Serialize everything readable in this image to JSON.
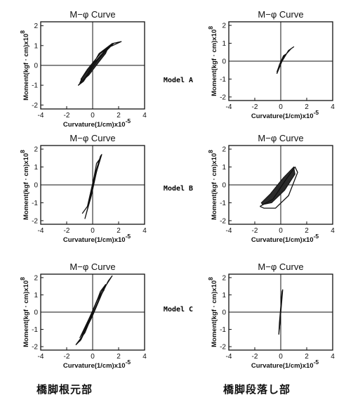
{
  "chart_data": [
    {
      "type": "line",
      "panel": "model-a-base",
      "title": "M−φ Curve",
      "xlabel": "Curvature(1/cm)x10",
      "xexp": "-5",
      "ylabel": "Moment(kgf · cm)x10",
      "yexp": "8",
      "xlim": [
        -4,
        4
      ],
      "ylim": [
        -2.2,
        2.2
      ],
      "xticks": [
        "-4",
        "-2",
        "0",
        "2",
        "4"
      ],
      "yticks": [
        "-2",
        "-1",
        "0",
        "1",
        "2"
      ],
      "series": [
        {
          "x": [
            -0.7,
            -0.2,
            0.5,
            1.5,
            2.2,
            1.2,
            0.6,
            -0.2,
            -0.7,
            -1.1,
            -0.4,
            0.4,
            1.3,
            1.6,
            0.6,
            -0.4,
            -0.9,
            -0.7
          ],
          "y": [
            -0.8,
            -0.2,
            0.6,
            1.1,
            1.2,
            0.9,
            0.5,
            -0.3,
            -0.8,
            -1.0,
            -0.5,
            0.3,
            0.9,
            1.1,
            0.6,
            -0.2,
            -0.7,
            -0.8
          ]
        }
      ],
      "filled": {
        "x": [
          -1.0,
          -0.3,
          0.4,
          1.0,
          1.2,
          0.6,
          -0.2,
          -0.8
        ],
        "y": [
          -0.9,
          -0.5,
          0.1,
          0.6,
          0.9,
          0.5,
          -0.1,
          -0.6
        ]
      }
    },
    {
      "type": "line",
      "panel": "model-a-step",
      "title": "M−φ Curve",
      "xlabel": "Curvature(1/cm)x10",
      "xexp": "-5",
      "ylabel": "Moment(kgf · cm)x10",
      "yexp": "8",
      "xlim": [
        -4,
        4
      ],
      "ylim": [
        -2.2,
        2.2
      ],
      "xticks": [
        "-4",
        "-2",
        "0",
        "2",
        "4"
      ],
      "yticks": [
        "-2",
        "-1",
        "0",
        "1",
        "2"
      ],
      "series": [
        {
          "x": [
            -0.3,
            0.1,
            0.6,
            1.0,
            0.8,
            0.3,
            -0.1,
            -0.3
          ],
          "y": [
            -0.7,
            0.0,
            0.6,
            0.8,
            0.7,
            0.3,
            -0.2,
            -0.7
          ]
        }
      ],
      "filled": {
        "x": [
          -0.3,
          0.0,
          0.4,
          0.2,
          -0.1
        ],
        "y": [
          -0.6,
          0.0,
          0.4,
          0.3,
          -0.2
        ]
      }
    },
    {
      "type": "line",
      "panel": "model-b-base",
      "title": "M−φ Curve",
      "xlabel": "Curvature(1/cm)x10",
      "xexp": "-5",
      "ylabel": "Moment(kgf · cm)x10",
      "yexp": "8",
      "xlim": [
        -4,
        4
      ],
      "ylim": [
        -2.2,
        2.2
      ],
      "xticks": [
        "-4",
        "-2",
        "0",
        "2",
        "4"
      ],
      "yticks": [
        "-2",
        "-1",
        "0",
        "1",
        "2"
      ],
      "series": [
        {
          "x": [
            -0.8,
            -0.4,
            0.2,
            0.7,
            0.6,
            0.1,
            -0.4,
            -0.8
          ],
          "y": [
            -1.6,
            -1.2,
            0.5,
            1.7,
            1.6,
            0.4,
            -1.2,
            -1.6
          ]
        },
        {
          "x": [
            -0.6,
            -0.1,
            0.5,
            0.3,
            -0.2,
            -0.6
          ],
          "y": [
            -1.9,
            -0.6,
            1.4,
            1.2,
            -0.8,
            -1.9
          ]
        }
      ],
      "filled": {
        "x": [
          -0.4,
          0.0,
          0.4,
          0.1,
          -0.3
        ],
        "y": [
          -1.2,
          -0.2,
          1.1,
          0.4,
          -1.0
        ]
      }
    },
    {
      "type": "line",
      "panel": "model-b-step",
      "title": "M−φ Curve",
      "xlabel": "Curvature(1/cm)x10",
      "xexp": "-5",
      "ylabel": "Moment(kgf · cm)x10",
      "yexp": "8",
      "xlim": [
        -4,
        4
      ],
      "ylim": [
        -2.2,
        2.2
      ],
      "xticks": [
        "-4",
        "-2",
        "0",
        "2",
        "4"
      ],
      "yticks": [
        "-2",
        "-1",
        "0",
        "1",
        "2"
      ],
      "series": [
        {
          "x": [
            -1.6,
            -0.6,
            0.4,
            1.1,
            1.3,
            0.6,
            -0.4,
            -1.3,
            -1.6
          ],
          "y": [
            -1.2,
            -0.8,
            0.3,
            1.0,
            0.7,
            -0.6,
            -1.3,
            -1.3,
            -1.2
          ]
        }
      ],
      "filled": {
        "x": [
          -1.5,
          -0.8,
          0.2,
          1.0,
          1.1,
          0.3,
          -0.7,
          -1.4
        ],
        "y": [
          -1.0,
          -0.5,
          0.4,
          1.0,
          0.6,
          -0.3,
          -1.0,
          -1.1
        ]
      }
    },
    {
      "type": "line",
      "panel": "model-c-base",
      "title": "M−φ Curve",
      "xlabel": "Curvature(1/cm)x10",
      "xexp": "-5",
      "ylabel": "Moment(kgf · cm)x10",
      "yexp": "8",
      "xlim": [
        -4,
        4
      ],
      "ylim": [
        -2.2,
        2.2
      ],
      "xticks": [
        "-4",
        "-2",
        "0",
        "2",
        "4"
      ],
      "yticks": [
        "-2",
        "-1",
        "0",
        "1",
        "2"
      ],
      "series": [
        {
          "x": [
            -1.3,
            -0.6,
            0.4,
            1.2,
            1.5,
            0.9,
            0.0,
            -0.9,
            -1.3
          ],
          "y": [
            -1.9,
            -1.2,
            0.6,
            1.8,
            2.1,
            1.4,
            -0.2,
            -1.6,
            -1.9
          ]
        },
        {
          "x": [
            -1.0,
            -0.2,
            0.6,
            1.0,
            0.4,
            -0.5,
            -1.0
          ],
          "y": [
            -1.7,
            -0.4,
            1.2,
            1.6,
            0.8,
            -0.8,
            -1.7
          ]
        }
      ],
      "filled": {
        "x": [
          -1.0,
          -0.3,
          0.5,
          0.9,
          0.3,
          -0.6
        ],
        "y": [
          -1.5,
          -0.4,
          0.9,
          1.3,
          0.6,
          -1.0
        ]
      }
    },
    {
      "type": "line",
      "panel": "model-c-step",
      "title": "M−φ Curve",
      "xlabel": "Curvature(1/cm)x10",
      "xexp": "-5",
      "ylabel": "Moment(kgf · cm)x10",
      "yexp": "8",
      "xlim": [
        -4,
        4
      ],
      "ylim": [
        -2.2,
        2.2
      ],
      "xticks": [
        "-4",
        "-2",
        "0",
        "2",
        "4"
      ],
      "yticks": [
        "-2",
        "-1",
        "0",
        "1",
        "2"
      ],
      "series": [
        {
          "x": [
            -0.15,
            -0.05,
            0.05,
            0.15,
            0.1,
            0.0,
            -0.1,
            -0.15
          ],
          "y": [
            -1.3,
            -0.5,
            0.4,
            1.3,
            1.2,
            0.3,
            -0.6,
            -1.3
          ]
        }
      ],
      "filled": {
        "x": [
          -0.1,
          0.0,
          0.1,
          0.05
        ],
        "y": [
          -1.0,
          0.0,
          1.0,
          0.8
        ]
      }
    }
  ],
  "row_labels": [
    "Model A",
    "Model B",
    "Model C"
  ],
  "captions": {
    "left": "橋脚根元部",
    "right": "橋脚段落し部"
  },
  "colors": {
    "ink": "#111111",
    "fill": "#2a2a2a"
  }
}
